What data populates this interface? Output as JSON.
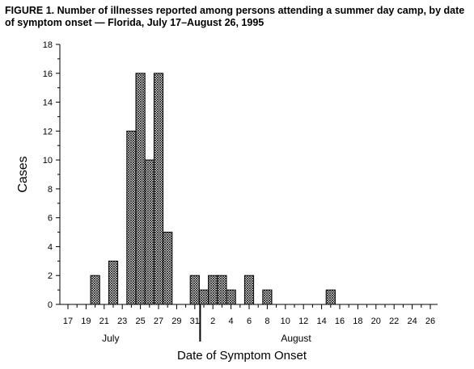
{
  "figure": {
    "title": "FIGURE 1. Number of illnesses reported among persons attending a summer day camp, by date of symptom onset — Florida, July 17–August 26, 1995"
  },
  "chart_data": {
    "type": "bar",
    "title": "FIGURE 1. Number of illnesses reported among persons attending a summer day camp, by date of symptom onset — Florida, July 17–August 26, 1995",
    "xlabel": "Date of Symptom Onset",
    "ylabel": "Cases",
    "ylim": [
      0,
      18
    ],
    "yticks": [
      "0",
      "2",
      "4",
      "6",
      "8",
      "10",
      "12",
      "14",
      "16",
      "18"
    ],
    "xticks": [
      "17",
      "19",
      "21",
      "23",
      "25",
      "27",
      "29",
      "31",
      "2",
      "4",
      "6",
      "8",
      "10",
      "12",
      "14",
      "16",
      "18",
      "20",
      "22",
      "24",
      "26"
    ],
    "month_labels": [
      "July",
      "August"
    ],
    "categories": [
      "July 17",
      "July 18",
      "July 19",
      "July 20",
      "July 21",
      "July 22",
      "July 23",
      "July 24",
      "July 25",
      "July 26",
      "July 27",
      "July 28",
      "July 29",
      "July 30",
      "July 31",
      "Aug 1",
      "Aug 2",
      "Aug 3",
      "Aug 4",
      "Aug 5",
      "Aug 6",
      "Aug 7",
      "Aug 8",
      "Aug 9",
      "Aug 10",
      "Aug 11",
      "Aug 12",
      "Aug 13",
      "Aug 14",
      "Aug 15",
      "Aug 16",
      "Aug 17",
      "Aug 18",
      "Aug 19",
      "Aug 20",
      "Aug 21",
      "Aug 22",
      "Aug 23",
      "Aug 24",
      "Aug 25",
      "Aug 26"
    ],
    "values": [
      0,
      0,
      0,
      2,
      0,
      3,
      0,
      12,
      16,
      10,
      16,
      5,
      0,
      0,
      2,
      1,
      2,
      2,
      1,
      0,
      2,
      0,
      1,
      0,
      0,
      0,
      0,
      0,
      0,
      1,
      0,
      0,
      0,
      0,
      0,
      0,
      0,
      0,
      0,
      0,
      0
    ],
    "grid": false,
    "fill": "crosshatch"
  }
}
